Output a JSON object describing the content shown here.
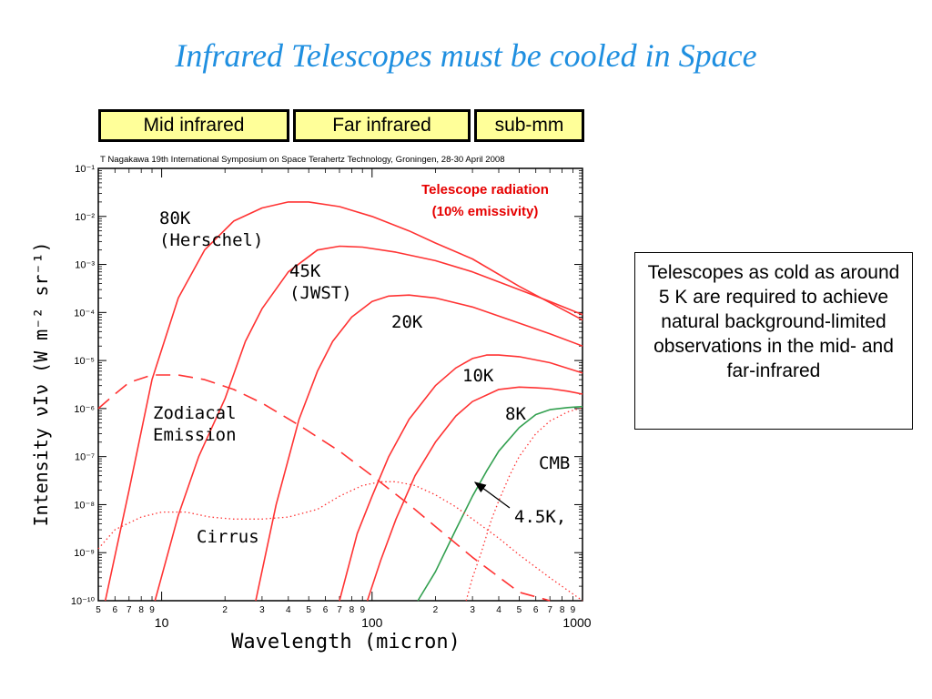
{
  "slide": {
    "title": "Infrared Telescopes must be cooled in Space",
    "bands": [
      "Mid infrared",
      "Far infrared",
      "sub-mm"
    ],
    "note": "Telescopes as cold as around 5 K are required to achieve natural background-limited observations in the mid- and far-infrared"
  },
  "chart_data": {
    "type": "line",
    "scale": "log-log",
    "citation": "T Nagakawa 19th International Symposium on Space Terahertz Technology, Groningen, 28-30 April 2008",
    "xlabel": "Wavelength (micron)",
    "ylabel": "Intensity νIν (W m⁻² sr⁻¹)",
    "xlim": [
      5,
      1000
    ],
    "ylim": [
      1e-10,
      0.1
    ],
    "x_major_labels": [
      "10",
      "100",
      "1000"
    ],
    "x_minor_labels": [
      "5",
      "6",
      "7",
      "8",
      "9",
      "2",
      "3",
      "4",
      "5",
      "6",
      "7",
      "8",
      "9",
      "2",
      "3",
      "4",
      "5",
      "6",
      "7",
      "8",
      "9"
    ],
    "y_tick_labels": [
      "10⁻¹",
      "10⁻²",
      "10⁻³",
      "10⁻⁴",
      "10⁻⁵",
      "10⁻⁶",
      "10⁻⁷",
      "10⁻⁸",
      "10⁻⁹",
      "10⁻¹⁰"
    ],
    "colors": {
      "telescope": "#ff3333",
      "cmb": "#33a050",
      "arrow": "#000000",
      "citation": "#000000",
      "label_red": "#e60000"
    },
    "legend_text": [
      "Telescope radiation",
      "(10% emissivity)"
    ],
    "curve_labels": {
      "k80": [
        "80K",
        "(Herschel)"
      ],
      "k45": [
        "45K",
        "(JWST)"
      ],
      "k20": [
        "20K"
      ],
      "k10": [
        "10K"
      ],
      "k8": [
        "8K"
      ],
      "zodi": [
        "Zodiacal",
        "Emission"
      ],
      "cirrus": [
        "Cirrus"
      ],
      "cmb": [
        "CMB"
      ],
      "k45b": [
        "4.5K,"
      ]
    },
    "series": [
      {
        "id": "k80",
        "style": "solid",
        "color": "#ff3333",
        "x": [
          5.4,
          7,
          9,
          12,
          16,
          22,
          30,
          40,
          50,
          70,
          100,
          150,
          200,
          300,
          500,
          700,
          1000
        ],
        "y": [
          1e-10,
          2e-08,
          4e-06,
          0.0002,
          0.002,
          0.008,
          0.015,
          0.02,
          0.02,
          0.016,
          0.01,
          0.005,
          0.0028,
          0.0013,
          0.00035,
          0.00016,
          7e-05
        ]
      },
      {
        "id": "k45",
        "style": "solid",
        "color": "#ff3333",
        "x": [
          9.3,
          12,
          15,
          20,
          25,
          30,
          40,
          55,
          70,
          90,
          130,
          200,
          300,
          500,
          700,
          1000
        ],
        "y": [
          1e-10,
          6e-09,
          1e-07,
          1.6e-06,
          2.5e-05,
          0.00012,
          0.0007,
          0.002,
          0.0024,
          0.0023,
          0.0018,
          0.0012,
          0.0007,
          0.0003,
          0.00017,
          9e-05
        ]
      },
      {
        "id": "k20",
        "style": "solid",
        "color": "#ff3333",
        "x": [
          28,
          35,
          45,
          55,
          65,
          80,
          100,
          120,
          150,
          200,
          300,
          500,
          700,
          1000
        ],
        "y": [
          1e-10,
          1e-08,
          6e-07,
          6e-06,
          2.5e-05,
          8e-05,
          0.00017,
          0.00022,
          0.00023,
          0.0002,
          0.00013,
          6e-05,
          3.6e-05,
          2e-05
        ]
      },
      {
        "id": "k10",
        "style": "solid",
        "color": "#ff3333",
        "x": [
          70,
          85,
          100,
          120,
          150,
          200,
          250,
          300,
          350,
          400,
          500,
          700,
          1000
        ],
        "y": [
          1e-10,
          2.5e-09,
          1.5e-08,
          1e-07,
          6e-07,
          3e-06,
          7e-06,
          1.1e-05,
          1.3e-05,
          1.3e-05,
          1.2e-05,
          9e-06,
          5.5e-06
        ]
      },
      {
        "id": "k8",
        "style": "solid",
        "color": "#ff3333",
        "x": [
          95,
          110,
          130,
          160,
          200,
          250,
          300,
          400,
          500,
          600,
          700,
          850,
          1000
        ],
        "y": [
          1e-10,
          7e-10,
          5e-09,
          4e-08,
          2e-07,
          7e-07,
          1.4e-06,
          2.5e-06,
          2.8e-06,
          2.7e-06,
          2.6e-06,
          2.3e-06,
          2e-06
        ]
      },
      {
        "id": "k45b",
        "style": "solid",
        "color": "#33a050",
        "x": [
          165,
          200,
          250,
          300,
          350,
          400,
          500,
          600,
          700,
          850,
          1000
        ],
        "y": [
          1e-10,
          4e-10,
          3e-09,
          1.5e-08,
          5e-08,
          1.3e-07,
          4e-07,
          7.5e-07,
          9.5e-07,
          1.05e-06,
          1.1e-06
        ]
      },
      {
        "id": "zodi",
        "style": "dashed",
        "color": "#ff3333",
        "x": [
          5,
          6,
          7,
          9,
          12,
          16,
          22,
          30,
          45,
          70,
          100,
          150,
          200,
          300,
          500,
          700
        ],
        "y": [
          1e-06,
          2e-06,
          3.5e-06,
          5e-06,
          5e-06,
          4e-06,
          2.5e-06,
          1.3e-06,
          4.5e-07,
          1.3e-07,
          4e-08,
          1e-08,
          3.5e-09,
          8e-10,
          1.5e-10,
          1e-10
        ]
      },
      {
        "id": "cirrus",
        "style": "dotted",
        "color": "#ff3333",
        "x": [
          5,
          6,
          8,
          10,
          13,
          17,
          22,
          30,
          40,
          55,
          70,
          90,
          110,
          130,
          160,
          200,
          250,
          300,
          400,
          500,
          700,
          1000
        ],
        "y": [
          1.2e-09,
          3e-09,
          5.5e-09,
          7e-09,
          7e-09,
          5.5e-09,
          5e-09,
          5e-09,
          5.5e-09,
          8e-09,
          1.5e-08,
          2.5e-08,
          3e-08,
          3e-08,
          2.5e-08,
          1.6e-08,
          9e-09,
          5e-09,
          2e-09,
          9e-10,
          3e-10,
          1e-10
        ]
      },
      {
        "id": "cmb",
        "style": "dotted",
        "color": "#ff3333",
        "x": [
          280,
          300,
          330,
          370,
          400,
          450,
          500,
          600,
          700,
          850,
          1000
        ],
        "y": [
          1e-10,
          3e-10,
          1e-09,
          5e-09,
          1.2e-08,
          4e-08,
          1e-07,
          3e-07,
          5.5e-07,
          8.5e-07,
          1.05e-06
        ]
      }
    ]
  }
}
